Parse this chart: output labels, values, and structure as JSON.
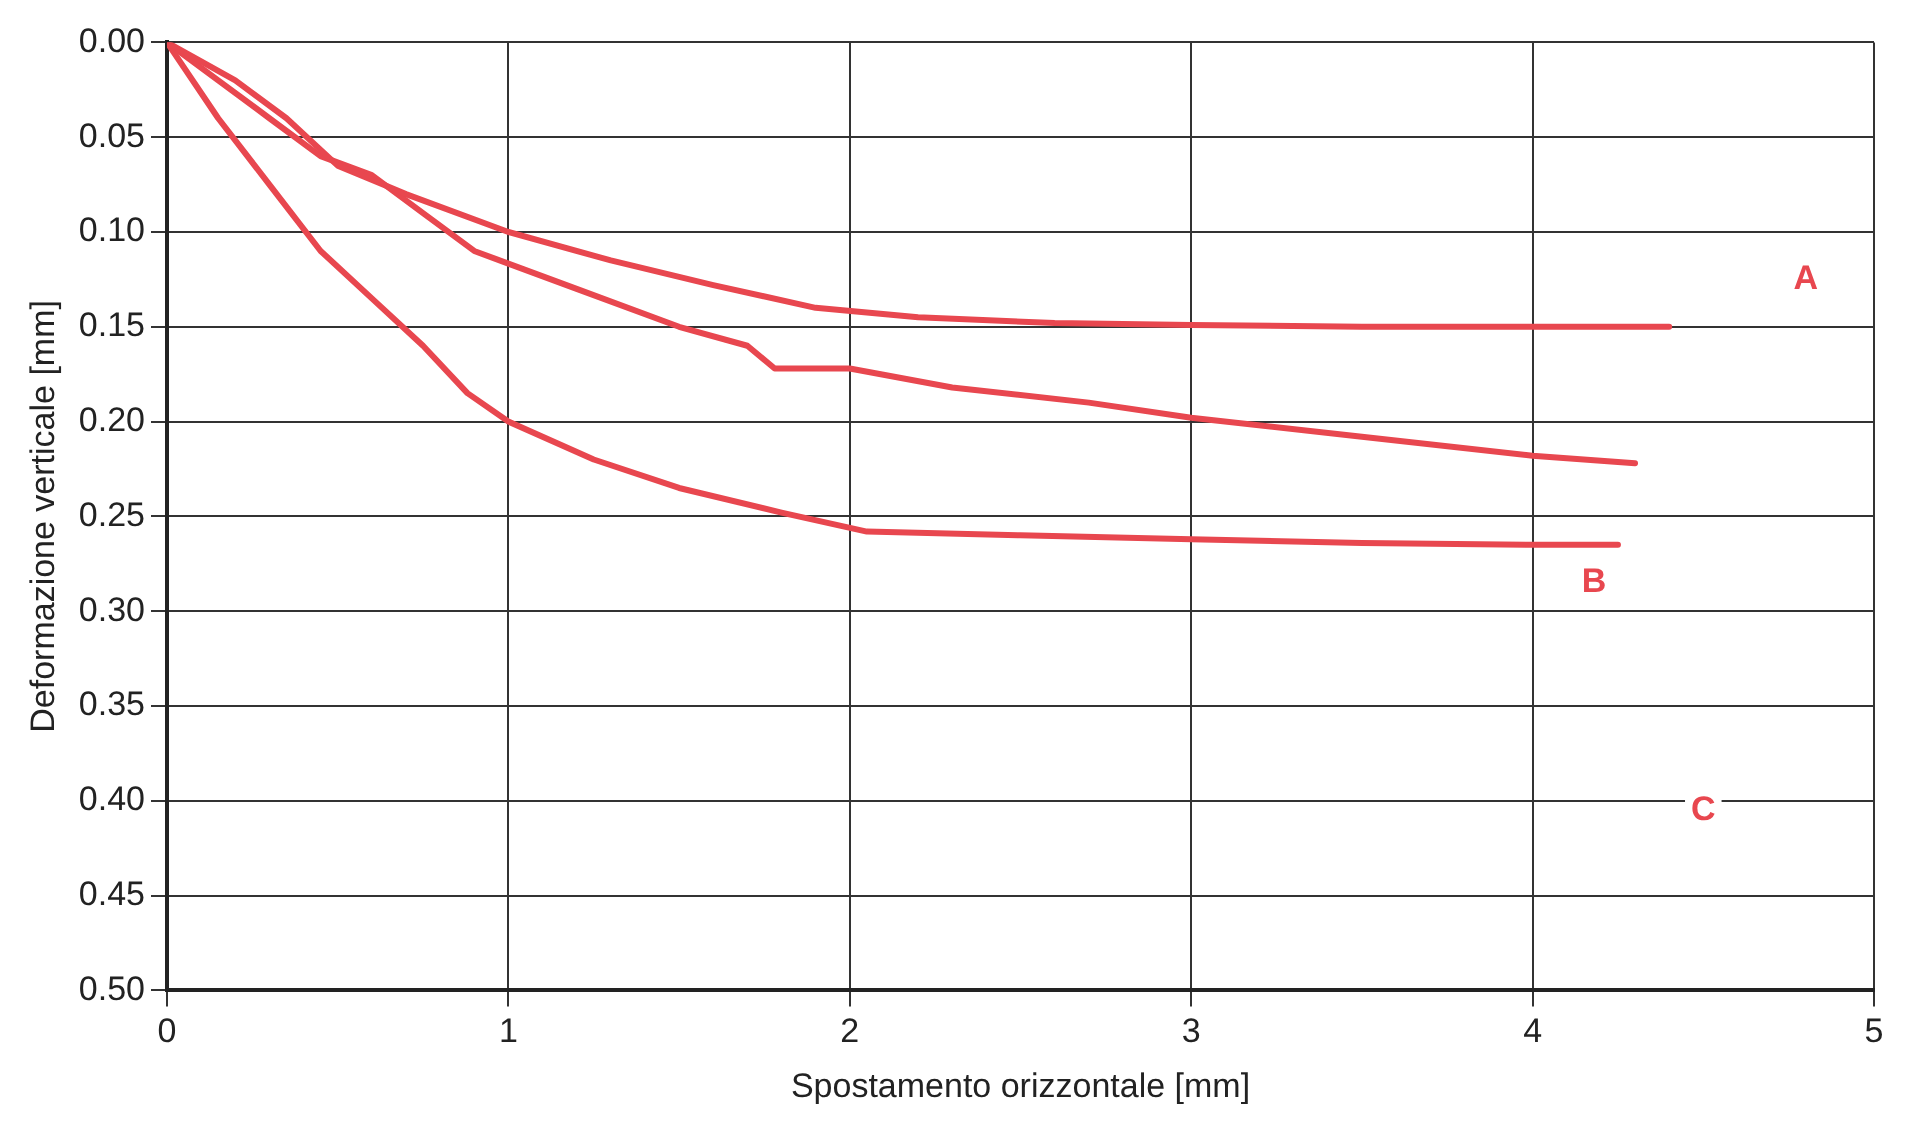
{
  "chart_data": {
    "type": "line",
    "xlabel": "Spostamento orizzontale [mm]",
    "ylabel": "Deformazione verticale [mm]",
    "xlim": [
      0,
      5
    ],
    "xticks": [
      0,
      1,
      2,
      3,
      4,
      5
    ],
    "ylim": [
      0.5,
      0
    ],
    "yticks": [
      {
        "value": 0,
        "label": "0.00"
      },
      {
        "value": 0.05,
        "label": "0.05"
      },
      {
        "value": 0.1,
        "label": "0.10"
      },
      {
        "value": 0.15,
        "label": "0.15"
      },
      {
        "value": 0.2,
        "label": "0.20"
      },
      {
        "value": 0.25,
        "label": "0.25"
      },
      {
        "value": 0.3,
        "label": "0.30"
      },
      {
        "value": 0.35,
        "label": "0.35"
      },
      {
        "value": 0.4,
        "label": "0.40"
      },
      {
        "value": 0.45,
        "label": "0.45"
      },
      {
        "value": 0.5,
        "label": "0.50"
      }
    ],
    "grid": true,
    "legend": false,
    "marker": "none",
    "line_style": "solid",
    "series": [
      {
        "color": "#e8474f",
        "x": [
          0,
          0.1,
          0.2,
          0.35,
          0.5,
          0.7,
          1,
          1.3,
          1.6,
          1.9,
          2.2,
          2.6,
          3,
          3.5,
          4,
          4.4
        ],
        "values": [
          0,
          0.01,
          0.02,
          0.04,
          0.065,
          0.08,
          0.1,
          0.115,
          0.128,
          0.14,
          0.145,
          0.148,
          0.149,
          0.15,
          0.15,
          0.15
        ]
      },
      {
        "color": "#e8474f",
        "x": [
          0,
          0.15,
          0.3,
          0.45,
          0.6,
          0.75,
          0.9,
          1.2,
          1.5,
          1.7,
          1.78,
          2,
          2.3,
          2.7,
          3,
          3.5,
          4,
          4.3
        ],
        "values": [
          0,
          0.02,
          0.04,
          0.06,
          0.07,
          0.09,
          0.11,
          0.13,
          0.15,
          0.16,
          0.172,
          0.172,
          0.182,
          0.19,
          0.198,
          0.208,
          0.218,
          0.222
        ]
      },
      {
        "color": "#e8474f",
        "x": [
          0,
          0.15,
          0.3,
          0.45,
          0.6,
          0.75,
          0.88,
          1,
          1.25,
          1.5,
          1.8,
          2.05,
          2.5,
          3,
          3.5,
          4,
          4.25
        ],
        "values": [
          0,
          0.04,
          0.075,
          0.11,
          0.135,
          0.16,
          0.185,
          0.2,
          0.22,
          0.235,
          0.248,
          0.258,
          0.26,
          0.262,
          0.264,
          0.265,
          0.265
        ]
      }
    ],
    "annotations": [
      "A",
      "B",
      "C"
    ]
  }
}
